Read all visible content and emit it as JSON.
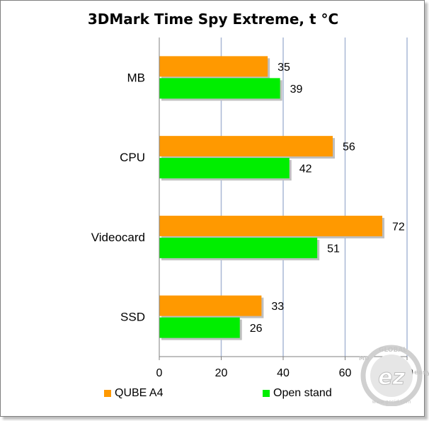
{
  "chart_data": {
    "type": "bar",
    "orientation": "horizontal",
    "title": "3DMark Time Spy Extreme, t °C",
    "categories": [
      "MB",
      "CPU",
      "Videocard",
      "SSD"
    ],
    "series": [
      {
        "name": "QUBE A4",
        "color": "#ff9900",
        "values": [
          35,
          56,
          72,
          33
        ]
      },
      {
        "name": "Open stand",
        "color": "#00ee00",
        "values": [
          39,
          42,
          51,
          26
        ]
      }
    ],
    "xlim": [
      0,
      80
    ],
    "xticks": [
      0,
      20,
      40,
      60,
      80
    ],
    "grid": true,
    "legend_position": "bottom"
  },
  "watermark": {
    "top_text": "GLOBAL",
    "logo_text": "ez",
    "side_text": "easy",
    "small_text": "MD",
    "url_text": "www.gecid.com"
  }
}
